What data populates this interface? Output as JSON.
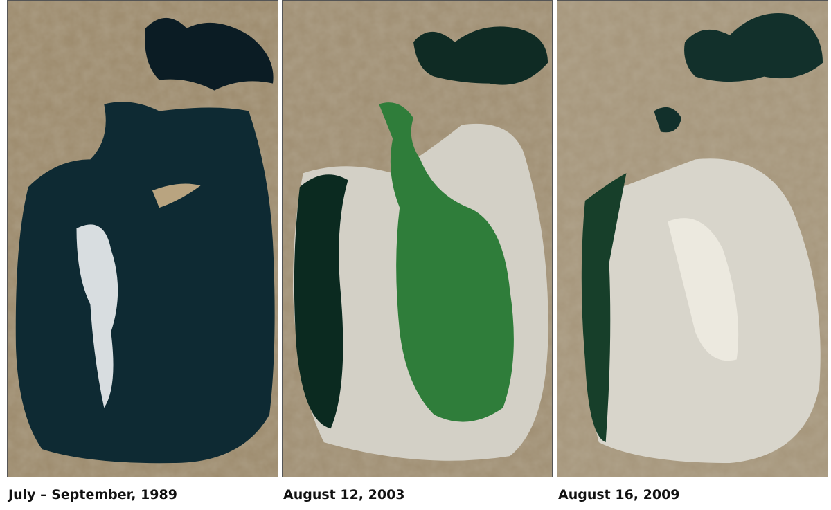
{
  "panels": [
    {
      "caption": "July – September, 1989"
    },
    {
      "caption": "August 12, 2003"
    },
    {
      "caption": "August 16, 2009"
    }
  ],
  "colors": {
    "land": "#9c8a6c",
    "deep_water": "#0d2630",
    "green_water": "#2a7a3a",
    "salt_flat": "#d9d6cc"
  }
}
